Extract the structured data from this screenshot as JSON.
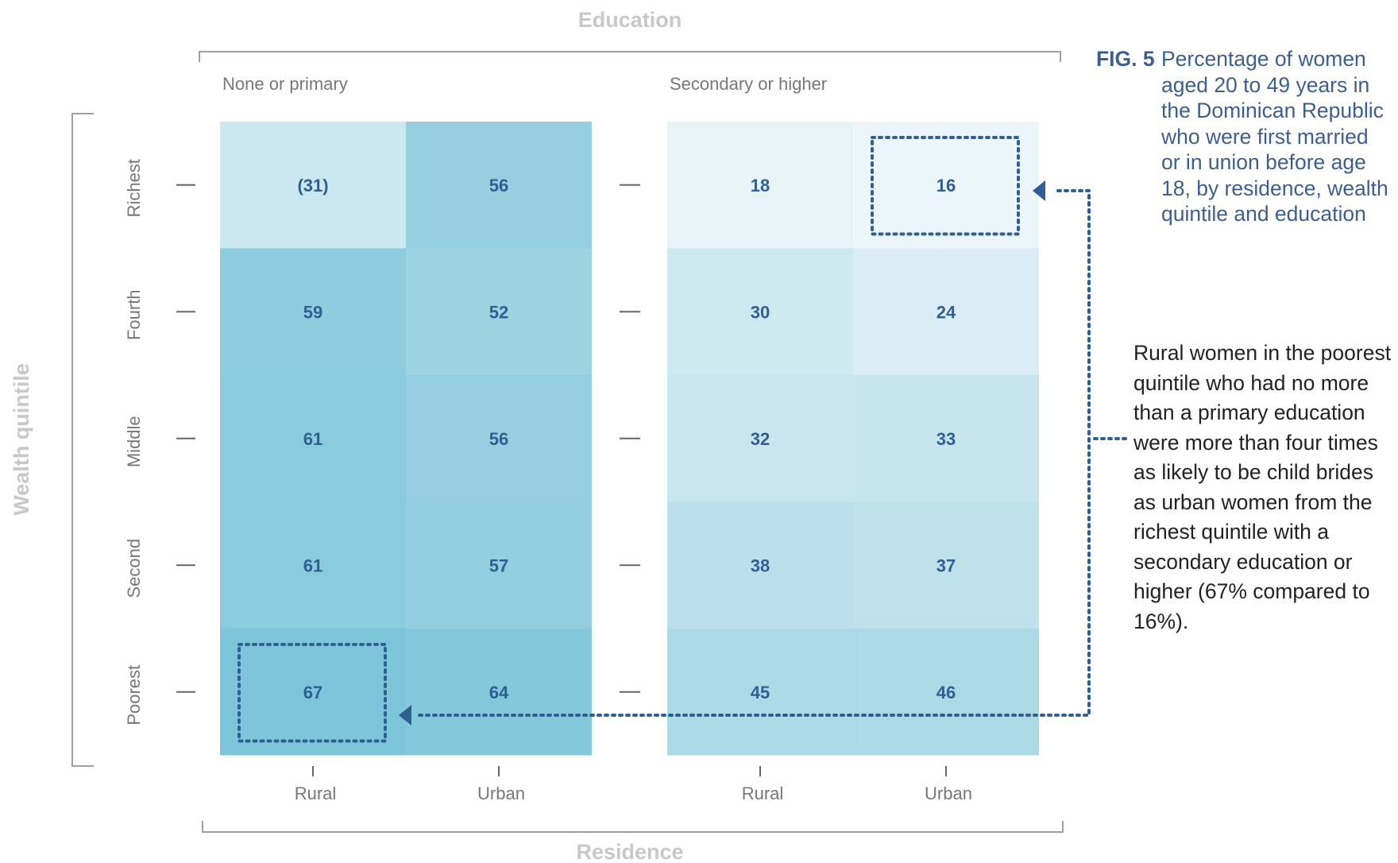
{
  "figure": {
    "label": "FIG. 5",
    "title": "Percentage of women aged 20 to 49 years in the Dominican Republic who were first married or in union before age 18, by residence, wealth quintile and education"
  },
  "annotation": "Rural women in the poorest quintile who had no more than a primary education were more than four times as likely to be child brides as urban women from the richest quintile with a secondary education or higher (67% compared to 16%).",
  "chart_data": {
    "type": "heatmap",
    "title": "Percentage of women aged 20 to 49 years in the Dominican Republic who were first married or in union before age 18, by residence, wealth quintile and education",
    "top_axis_title": "Education",
    "bottom_axis_title": "Residence",
    "y_axis_title": "Wealth quintile",
    "groups": [
      "None or primary",
      "Secondary or higher"
    ],
    "columns": [
      "Rural",
      "Urban"
    ],
    "rows": [
      "Richest",
      "Fourth",
      "Middle",
      "Second",
      "Poorest"
    ],
    "values": [
      [
        31,
        56,
        18,
        16
      ],
      [
        59,
        52,
        30,
        24
      ],
      [
        61,
        56,
        32,
        33
      ],
      [
        61,
        57,
        38,
        37
      ],
      [
        67,
        64,
        45,
        46
      ]
    ],
    "labels": [
      [
        "(31)",
        "56",
        "18",
        "16"
      ],
      [
        "59",
        "52",
        "30",
        "24"
      ],
      [
        "61",
        "56",
        "32",
        "33"
      ],
      [
        "61",
        "57",
        "38",
        "37"
      ],
      [
        "67",
        "64",
        "45",
        "46"
      ]
    ],
    "highlighted_cells": [
      {
        "row": "Richest",
        "group": "Secondary or higher",
        "column": "Urban",
        "value": 16
      },
      {
        "row": "Poorest",
        "group": "None or primary",
        "column": "Rural",
        "value": 67
      }
    ],
    "colors": {
      "cell_low": "#ecf5f9",
      "cell_high": "#7dc5d9",
      "value_text": "#2f5f93",
      "axis_title": "#c8c8c8",
      "tick_label": "#777777",
      "highlight": "#2f5f93"
    }
  }
}
